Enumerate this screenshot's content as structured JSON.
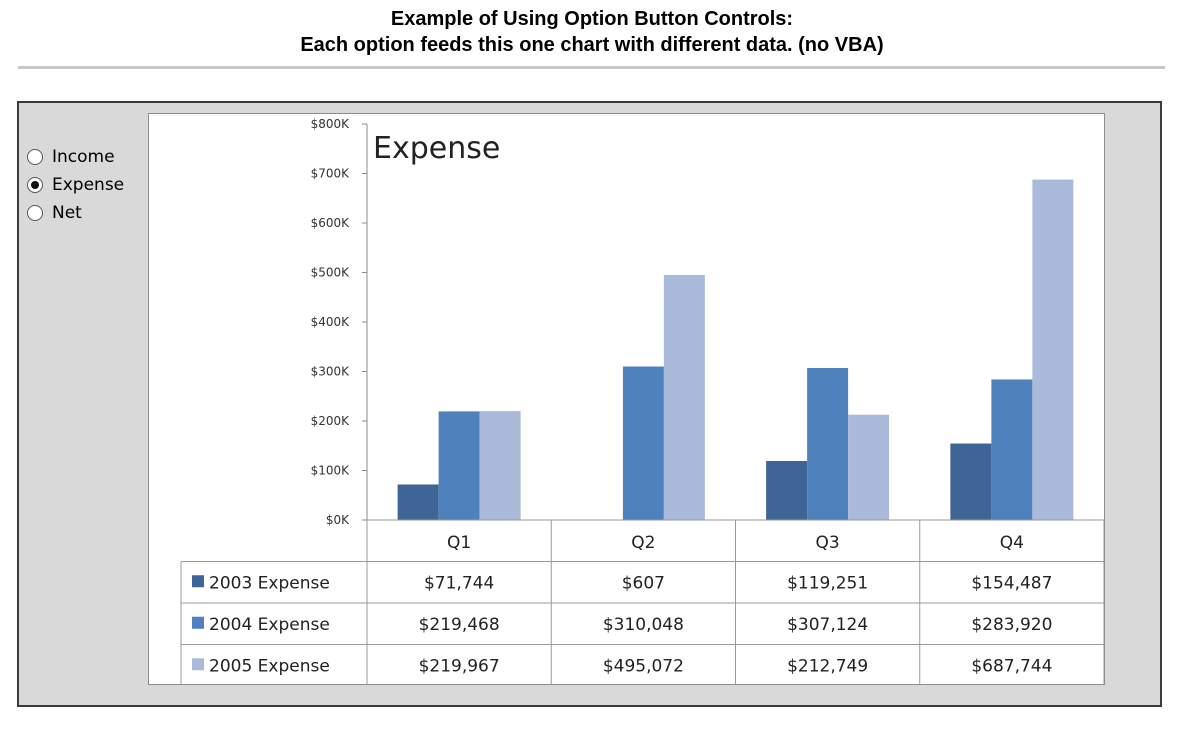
{
  "page": {
    "heading_line1": "Example of Using Option Button Controls:",
    "heading_line2": "Each option feeds this one chart with different data.  (no VBA)"
  },
  "options": [
    {
      "label": "Income",
      "checked": false
    },
    {
      "label": "Expense",
      "checked": true
    },
    {
      "label": "Net",
      "checked": false
    }
  ],
  "chart_data": {
    "type": "bar",
    "title": "Expense",
    "categories": [
      "Q1",
      "Q2",
      "Q3",
      "Q4"
    ],
    "series": [
      {
        "name": "2003 Expense",
        "color": "#3f6496",
        "values": [
          71744,
          607,
          119251,
          154487
        ],
        "labels": [
          "$71,744",
          "$607",
          "$119,251",
          "$154,487"
        ]
      },
      {
        "name": "2004 Expense",
        "color": "#4f81bd",
        "values": [
          219468,
          310048,
          307124,
          283920
        ],
        "labels": [
          "$219,468",
          "$310,048",
          "$307,124",
          "$283,920"
        ]
      },
      {
        "name": "2005 Expense",
        "color": "#a9badb",
        "values": [
          219967,
          495072,
          212749,
          687744
        ],
        "labels": [
          "$219,967",
          "$495,072",
          "$212,749",
          "$687,744"
        ]
      }
    ],
    "ylim": [
      0,
      800000
    ],
    "yticks": [
      0,
      100000,
      200000,
      300000,
      400000,
      500000,
      600000,
      700000,
      800000
    ],
    "ytick_labels": [
      "$0K",
      "$100K",
      "$200K",
      "$300K",
      "$400K",
      "$500K",
      "$600K",
      "$700K",
      "$800K"
    ],
    "grid": false,
    "legend": "data-table"
  }
}
